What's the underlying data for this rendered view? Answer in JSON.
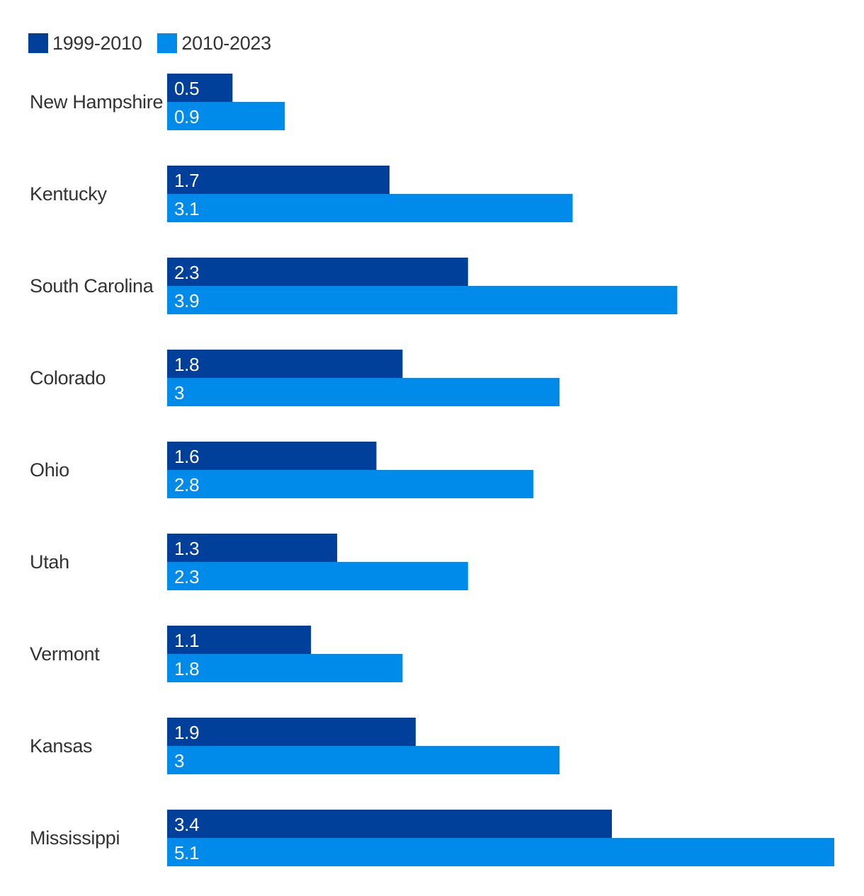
{
  "legend": [
    {
      "label": "1999-2010",
      "color": "#003f9a"
    },
    {
      "label": "2010-2023",
      "color": "#008beb"
    }
  ],
  "chart_data": {
    "type": "bar",
    "orientation": "horizontal",
    "categories": [
      "New Hampshire",
      "Kentucky",
      "South Carolina",
      "Colorado",
      "Ohio",
      "Utah",
      "Vermont",
      "Kansas",
      "Mississippi"
    ],
    "series": [
      {
        "name": "1999-2010",
        "color": "#003f9a",
        "values": [
          0.5,
          1.7,
          2.3,
          1.8,
          1.6,
          1.3,
          1.1,
          1.9,
          3.4
        ]
      },
      {
        "name": "2010-2023",
        "color": "#008beb",
        "values": [
          0.9,
          3.1,
          3.9,
          3.0,
          2.8,
          2.3,
          1.8,
          3.0,
          5.1
        ]
      }
    ],
    "value_labels": [
      [
        "0.5",
        "1.7",
        "2.3",
        "1.8",
        "1.6",
        "1.3",
        "1.1",
        "1.9",
        "3.4"
      ],
      [
        "0.9",
        "3.1",
        "3.9",
        "3",
        "2.8",
        "2.3",
        "1.8",
        "3",
        "5.1"
      ]
    ],
    "xlim": [
      0,
      5.1
    ],
    "grid": false,
    "legend_position": "top-left"
  }
}
